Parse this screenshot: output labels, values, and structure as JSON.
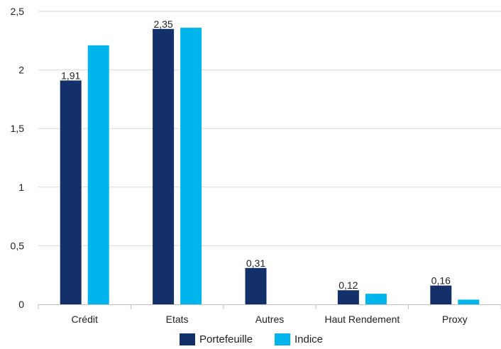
{
  "chart_data": {
    "type": "bar",
    "categories": [
      "Crédit",
      "Etats",
      "Autres",
      "Haut Rendement",
      "Proxy"
    ],
    "series": [
      {
        "name": "Portefeuille",
        "color": "#14306b",
        "values": [
          1.91,
          2.35,
          0.31,
          0.12,
          0.16
        ],
        "data_labels": [
          "1,91",
          "2,35",
          "0,31",
          "0,12",
          "0,16"
        ]
      },
      {
        "name": "Indice",
        "color": "#00b5eb",
        "values": [
          2.21,
          2.36,
          0.0,
          0.09,
          0.04
        ]
      }
    ],
    "ylim": [
      0,
      2.5
    ],
    "yticks": [
      0,
      0.5,
      1,
      1.5,
      2,
      2.5
    ],
    "ytick_labels": [
      "0",
      "0,5",
      "1",
      "1,5",
      "2",
      "2,5"
    ],
    "grid": true,
    "legend": "bottom-center",
    "title": "",
    "xlabel": "",
    "ylabel": ""
  }
}
